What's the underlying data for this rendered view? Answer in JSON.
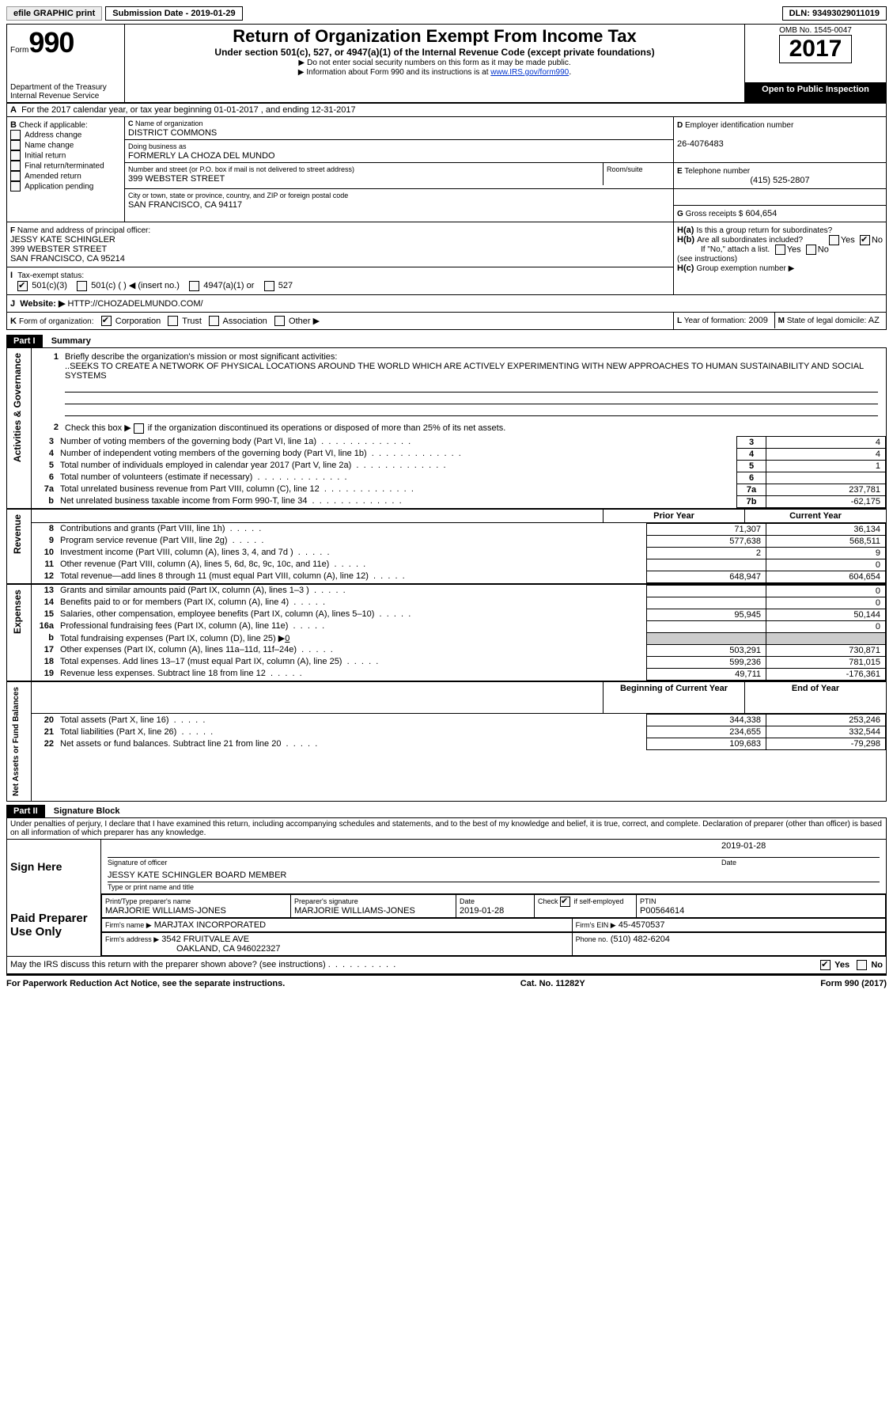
{
  "topbar": {
    "efile_btn": "efile GRAPHIC print",
    "submission_label": "Submission Date - 2019-01-29",
    "dln": "DLN: 93493029011019"
  },
  "header": {
    "form_small": "Form",
    "form_big": "990",
    "dept1": "Department of the Treasury",
    "dept2": "Internal Revenue Service",
    "title": "Return of Organization Exempt From Income Tax",
    "subtitle": "Under section 501(c), 527, or 4947(a)(1) of the Internal Revenue Code (except private foundations)",
    "note1": "Do not enter social security numbers on this form as it may be made public.",
    "note2": "Information about Form 990 and its instructions is at ",
    "note2_link": "www.IRS.gov/form990",
    "omb": "OMB No. 1545-0047",
    "year": "2017",
    "open_pub": "Open to Public Inspection"
  },
  "A_line": "For the 2017 calendar year, or tax year beginning 01-01-2017   , and ending 12-31-2017",
  "B": {
    "label": "Check if applicable:",
    "opts": [
      "Address change",
      "Name change",
      "Initial return",
      "Final return/terminated",
      "Amended return",
      "Application pending"
    ]
  },
  "C": {
    "name_label": "Name of organization",
    "name": "DISTRICT COMMONS",
    "dba_label": "Doing business as",
    "dba": "FORMERLY LA CHOZA DEL MUNDO",
    "addr_label": "Number and street (or P.O. box if mail is not delivered to street address)",
    "room_label": "Room/suite",
    "addr": "399 WEBSTER STREET",
    "city_label": "City or town, state or province, country, and ZIP or foreign postal code",
    "city": "SAN FRANCISCO, CA  94117"
  },
  "D": {
    "label": "Employer identification number",
    "val": "26-4076483"
  },
  "E": {
    "label": "Telephone number",
    "val": "(415) 525-2807"
  },
  "G": {
    "label": "Gross receipts $",
    "val": "604,654"
  },
  "F": {
    "label": "Name and address of principal officer:",
    "name": "JESSY KATE SCHINGLER",
    "addr1": "399 WEBSTER STREET",
    "addr2": "SAN FRANCISCO, CA  95214"
  },
  "H": {
    "a_label": "Is this a group return for subordinates?",
    "b_label": "Are all subordinates included?",
    "ifno": "If \"No,\" attach a list. (see instructions)",
    "c_label": "Group exemption number ▶",
    "yes": "Yes",
    "no": "No"
  },
  "I": {
    "label": "Tax-exempt status:",
    "opts": [
      "501(c)(3)",
      "501(c) (   ) ◀ (insert no.)",
      "4947(a)(1) or",
      "527"
    ]
  },
  "J": {
    "label": "Website: ▶",
    "val": "HTTP://CHOZADELMUNDO.COM/"
  },
  "K": {
    "label": "Form of organization:",
    "opts": [
      "Corporation",
      "Trust",
      "Association",
      "Other ▶"
    ]
  },
  "L": {
    "label": "Year of formation:",
    "val": "2009"
  },
  "M": {
    "label": "State of legal domicile:",
    "val": "AZ"
  },
  "part1": {
    "header": "Part I    Summary",
    "side_labels": [
      "Activities & Governance",
      "Revenue",
      "Expenses",
      "Net Assets or Fund Balances"
    ],
    "l1_label": "Briefly describe the organization's mission or most significant activities:",
    "l1_text": "..SEEKS TO CREATE A NETWORK OF PHYSICAL LOCATIONS AROUND THE WORLD WHICH ARE ACTIVELY EXPERIMENTING WITH NEW APPROACHES TO HUMAN SUSTAINABILITY AND SOCIAL SYSTEMS",
    "l2_label": "Check this box ▶      if the organization discontinued its operations or disposed of more than 25% of its net assets.",
    "rows_ag": [
      {
        "n": "3",
        "t": "Number of voting members of the governing body (Part VI, line 1a)",
        "b": "3",
        "v": "4"
      },
      {
        "n": "4",
        "t": "Number of independent voting members of the governing body (Part VI, line 1b)",
        "b": "4",
        "v": "4"
      },
      {
        "n": "5",
        "t": "Total number of individuals employed in calendar year 2017 (Part V, line 2a)",
        "b": "5",
        "v": "1"
      },
      {
        "n": "6",
        "t": "Total number of volunteers (estimate if necessary)",
        "b": "6",
        "v": ""
      },
      {
        "n": "7a",
        "t": "Total unrelated business revenue from Part VIII, column (C), line 12",
        "b": "7a",
        "v": "237,781"
      },
      {
        "n": "b",
        "t": "Net unrelated business taxable income from Form 990-T, line 34",
        "b": "7b",
        "v": "-62,175"
      }
    ],
    "col_prior": "Prior Year",
    "col_curr": "Current Year",
    "rows_rev": [
      {
        "n": "8",
        "t": "Contributions and grants (Part VIII, line 1h)",
        "p": "71,307",
        "c": "36,134"
      },
      {
        "n": "9",
        "t": "Program service revenue (Part VIII, line 2g)",
        "p": "577,638",
        "c": "568,511"
      },
      {
        "n": "10",
        "t": "Investment income (Part VIII, column (A), lines 3, 4, and 7d )",
        "p": "2",
        "c": "9"
      },
      {
        "n": "11",
        "t": "Other revenue (Part VIII, column (A), lines 5, 6d, 8c, 9c, 10c, and 11e)",
        "p": "",
        "c": "0"
      },
      {
        "n": "12",
        "t": "Total revenue—add lines 8 through 11 (must equal Part VIII, column (A), line 12)",
        "p": "648,947",
        "c": "604,654"
      }
    ],
    "rows_exp": [
      {
        "n": "13",
        "t": "Grants and similar amounts paid (Part IX, column (A), lines 1–3 )",
        "p": "",
        "c": "0"
      },
      {
        "n": "14",
        "t": "Benefits paid to or for members (Part IX, column (A), line 4)",
        "p": "",
        "c": "0"
      },
      {
        "n": "15",
        "t": "Salaries, other compensation, employee benefits (Part IX, column (A), lines 5–10)",
        "p": "95,945",
        "c": "50,144"
      },
      {
        "n": "16a",
        "t": "Professional fundraising fees (Part IX, column (A), line 11e)",
        "p": "",
        "c": "0"
      },
      {
        "n": "b",
        "t": "Total fundraising expenses (Part IX, column (D), line 25) ▶",
        "p": "SHADE",
        "c": "SHADE",
        "inline": "0"
      },
      {
        "n": "17",
        "t": "Other expenses (Part IX, column (A), lines 11a–11d, 11f–24e)",
        "p": "503,291",
        "c": "730,871"
      },
      {
        "n": "18",
        "t": "Total expenses. Add lines 13–17 (must equal Part IX, column (A), line 25)",
        "p": "599,236",
        "c": "781,015"
      },
      {
        "n": "19",
        "t": "Revenue less expenses. Subtract line 18 from line 12",
        "p": "49,711",
        "c": "-176,361"
      }
    ],
    "col_beg": "Beginning of Current Year",
    "col_end": "End of Year",
    "rows_net": [
      {
        "n": "20",
        "t": "Total assets (Part X, line 16)",
        "p": "344,338",
        "c": "253,246"
      },
      {
        "n": "21",
        "t": "Total liabilities (Part X, line 26)",
        "p": "234,655",
        "c": "332,544"
      },
      {
        "n": "22",
        "t": "Net assets or fund balances. Subtract line 21 from line 20",
        "p": "109,683",
        "c": "-79,298"
      }
    ]
  },
  "part2": {
    "header": "Part II    Signature Block",
    "decl": "Under penalties of perjury, I declare that I have examined this return, including accompanying schedules and statements, and to the best of my knowledge and belief, it is true, correct, and complete. Declaration of preparer (other than officer) is based on all information of which preparer has any knowledge.",
    "sign_here": "Sign Here",
    "sig_officer": "Signature of officer",
    "sig_date_lbl": "Date",
    "sig_date": "2019-01-28",
    "sig_name": "JESSY KATE SCHINGLER  BOARD MEMBER",
    "sig_name_lbl": "Type or print name and title",
    "paid": "Paid Preparer Use Only",
    "prep_name_lbl": "Print/Type preparer's name",
    "prep_name": "MARJORIE WILLIAMS-JONES",
    "prep_sig_lbl": "Preparer's signature",
    "prep_sig": "MARJORIE WILLIAMS-JONES",
    "prep_date_lbl": "Date",
    "prep_date": "2019-01-28",
    "self_emp": "Check        if self-employed",
    "ptin_lbl": "PTIN",
    "ptin": "P00564614",
    "firm_name_lbl": "Firm's name     ▶",
    "firm_name": "MARJTAX INCORPORATED",
    "firm_ein_lbl": "Firm's EIN ▶",
    "firm_ein": "45-4570537",
    "firm_addr_lbl": "Firm's address ▶",
    "firm_addr1": "3542 FRUITVALE AVE",
    "firm_addr2": "OAKLAND, CA  946022327",
    "firm_phone_lbl": "Phone no.",
    "firm_phone": "(510) 482-6204",
    "discuss": "May the IRS discuss this return with the preparer shown above? (see instructions)",
    "yes": "Yes",
    "no": "No"
  },
  "footer": {
    "pra": "For Paperwork Reduction Act Notice, see the separate instructions.",
    "cat": "Cat. No. 11282Y",
    "form": "Form 990 (2017)"
  }
}
